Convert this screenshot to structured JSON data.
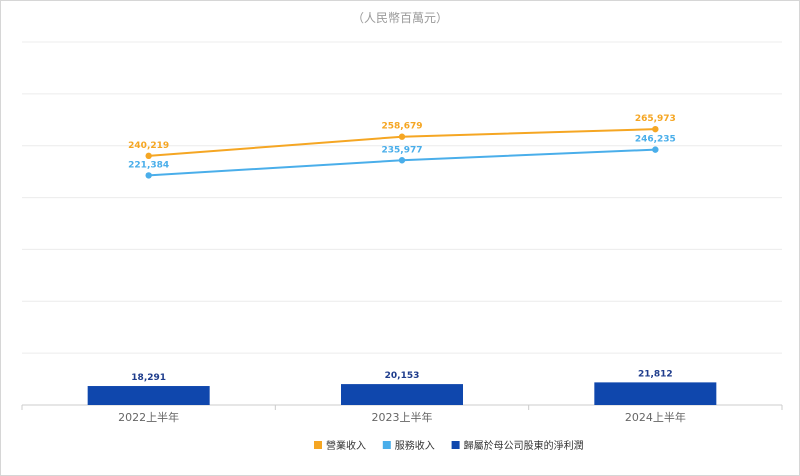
{
  "chart_data": {
    "type": "bar+line",
    "unit_label": "（人民幣百萬元）",
    "categories": [
      "2022上半年",
      "2023上半年",
      "2024上半年"
    ],
    "series": [
      {
        "name": "營業收入",
        "type": "line",
        "color": "#f5a623",
        "values": [
          240219,
          258679,
          265973
        ]
      },
      {
        "name": "服務收入",
        "type": "line",
        "color": "#4aaeea",
        "values": [
          221384,
          235977,
          246235
        ]
      },
      {
        "name": "歸屬於母公司股東的淨利潤",
        "type": "bar",
        "color": "#0f47ad",
        "values": [
          18291,
          20153,
          21812
        ]
      }
    ],
    "grid": true,
    "legend_position": "bottom"
  }
}
